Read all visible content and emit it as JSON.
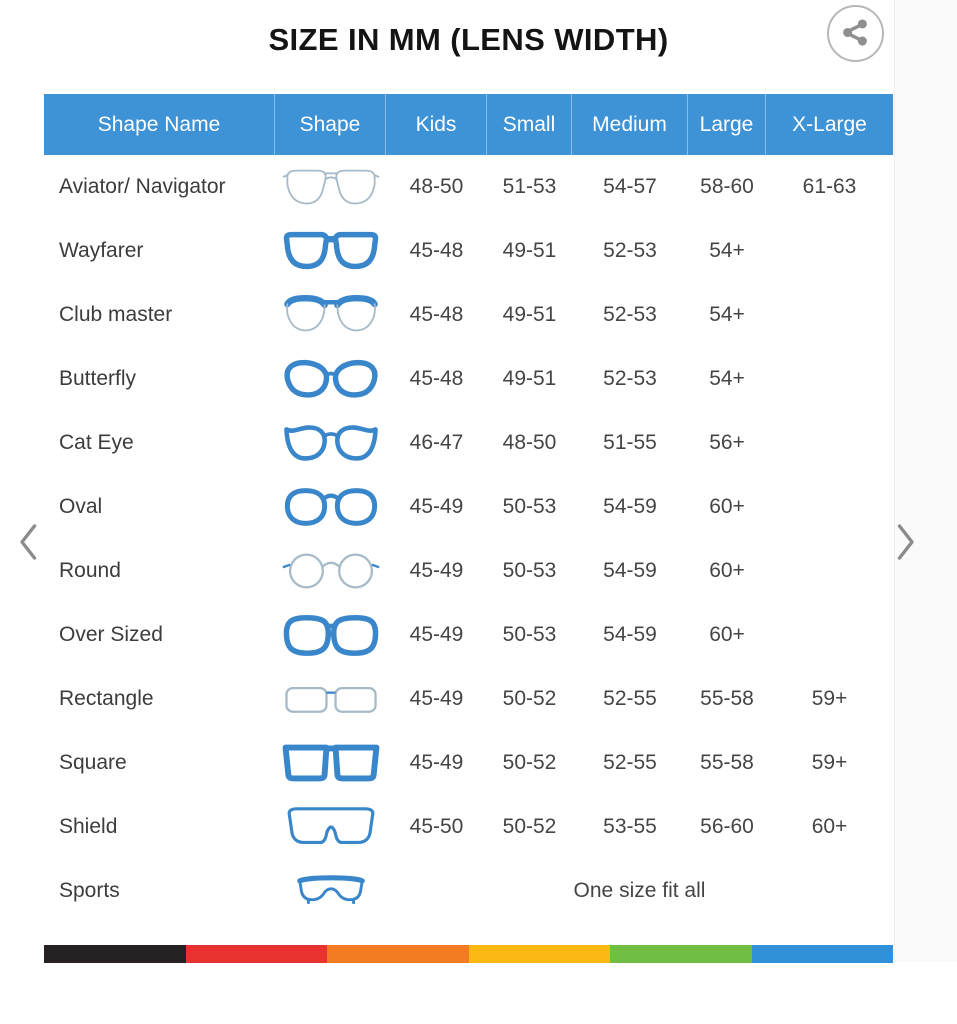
{
  "title": "SIZE IN MM (LENS WIDTH)",
  "table": {
    "columns": [
      "Shape Name",
      "Shape",
      "Kids",
      "Small",
      "Medium",
      "Large",
      "X-Large"
    ],
    "rows": [
      {
        "shape_name": "Aviator/ Navigator",
        "icon": "aviator",
        "kids": "48-50",
        "small": "51-53",
        "medium": "54-57",
        "large": "58-60",
        "xlarge": "61-63"
      },
      {
        "shape_name": "Wayfarer",
        "icon": "wayfarer",
        "kids": "45-48",
        "small": "49-51",
        "medium": "52-53",
        "large": "54+",
        "xlarge": ""
      },
      {
        "shape_name": "Club master",
        "icon": "clubmaster",
        "kids": "45-48",
        "small": "49-51",
        "medium": "52-53",
        "large": "54+",
        "xlarge": ""
      },
      {
        "shape_name": "Butterfly",
        "icon": "butterfly",
        "kids": "45-48",
        "small": "49-51",
        "medium": "52-53",
        "large": "54+",
        "xlarge": ""
      },
      {
        "shape_name": "Cat Eye",
        "icon": "cateye",
        "kids": "46-47",
        "small": "48-50",
        "medium": "51-55",
        "large": "56+",
        "xlarge": ""
      },
      {
        "shape_name": "Oval",
        "icon": "oval",
        "kids": "45-49",
        "small": "50-53",
        "medium": "54-59",
        "large": "60+",
        "xlarge": ""
      },
      {
        "shape_name": "Round",
        "icon": "round",
        "kids": "45-49",
        "small": "50-53",
        "medium": "54-59",
        "large": "60+",
        "xlarge": ""
      },
      {
        "shape_name": "Over Sized",
        "icon": "oversized",
        "kids": "45-49",
        "small": "50-53",
        "medium": "54-59",
        "large": "60+",
        "xlarge": ""
      },
      {
        "shape_name": "Rectangle",
        "icon": "rectangle",
        "kids": "45-49",
        "small": "50-52",
        "medium": "52-55",
        "large": "55-58",
        "xlarge": "59+"
      },
      {
        "shape_name": "Square",
        "icon": "square",
        "kids": "45-49",
        "small": "50-52",
        "medium": "52-55",
        "large": "55-58",
        "xlarge": "59+"
      },
      {
        "shape_name": "Shield",
        "icon": "shield",
        "kids": "45-50",
        "small": "50-52",
        "medium": "53-55",
        "large": "56-60",
        "xlarge": "60+"
      },
      {
        "shape_name": "Sports",
        "icon": "sports",
        "span_text": "One size fit all"
      }
    ]
  },
  "footer_bar_colors": [
    "#262223",
    "#e73231",
    "#f37b21",
    "#fcb813",
    "#70bf44",
    "#3191d8"
  ],
  "colors": {
    "header_bg": "#3e92d6",
    "frame_blue": "#3a86cb",
    "frame_light_outline": "#a6bac7",
    "chevron_gray": "#8b8b8b",
    "share_gray": "#8f8f8f",
    "title_text": "#141414",
    "cell_text": "#454545"
  }
}
